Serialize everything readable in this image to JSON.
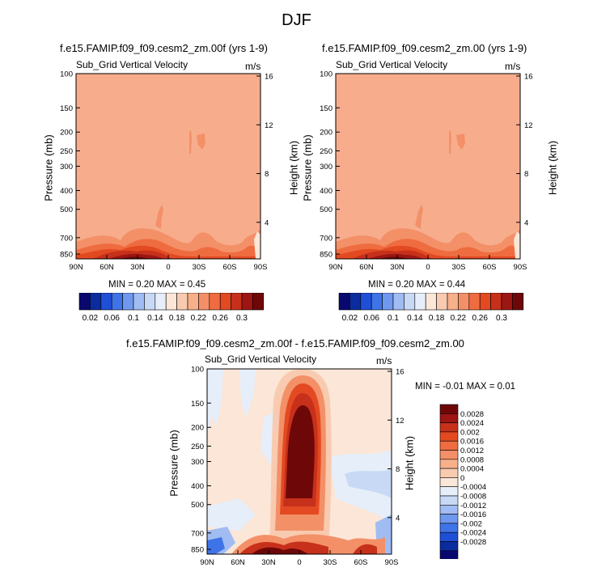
{
  "main_title": "DJF",
  "colors": {
    "hbar": [
      "#08086e",
      "#0a2c9e",
      "#1f4fd6",
      "#3f74e8",
      "#6f98ee",
      "#a0bcf2",
      "#c7d9f5",
      "#e6eefa",
      "#fbe6d7",
      "#f8cbb0",
      "#f6b08a",
      "#f39068",
      "#ef6c40",
      "#e34a22",
      "#c7301a",
      "#9c1614",
      "#6e0808"
    ],
    "vbar": [
      "#6e0808",
      "#9c1614",
      "#c7301a",
      "#e34a22",
      "#ef6c40",
      "#f39068",
      "#f6b08a",
      "#f8cbb0",
      "#fbe6d7",
      "#e6eefa",
      "#c7d9f5",
      "#a0bcf2",
      "#6f98ee",
      "#3f74e8",
      "#1f4fd6",
      "#0a2c9e",
      "#08086e"
    ],
    "bg_field": "#f7ad8c"
  },
  "chart_data": [
    {
      "type": "heatmap",
      "title": "f.e15.FAMIP.f09_f09.cesm2_zm.00f (yrs 1-9)",
      "variable": "Sub_Grid Vertical Velocity",
      "units": "m/s",
      "xlabel": "",
      "ylabel": "Pressure (mb)",
      "ylabel_right": "Height (km)",
      "x_ticks": [
        "90N",
        "60N",
        "30N",
        "0",
        "30S",
        "60S",
        "90S"
      ],
      "y_ticks": [
        "100",
        "150",
        "200",
        "250",
        "300",
        "400",
        "500",
        "700",
        "850"
      ],
      "y_ticks_right": [
        "16",
        "12",
        "8",
        "4"
      ],
      "stats": "MIN =  0.20   MAX =  0.45",
      "min": 0.2,
      "max": 0.45
    },
    {
      "type": "heatmap",
      "title": "f.e15.FAMIP.f09_f09.cesm2_zm.00 (yrs 1-9)",
      "variable": "Sub_Grid Vertical Velocity",
      "units": "m/s",
      "xlabel": "",
      "ylabel": "Pressure (mb)",
      "ylabel_right": "Height (km)",
      "x_ticks": [
        "90N",
        "60N",
        "30N",
        "0",
        "30S",
        "60S",
        "90S"
      ],
      "y_ticks": [
        "100",
        "150",
        "200",
        "250",
        "300",
        "400",
        "500",
        "700",
        "850"
      ],
      "y_ticks_right": [
        "16",
        "12",
        "8",
        "4"
      ],
      "stats": "MIN =  0.20   MAX =  0.44",
      "min": 0.2,
      "max": 0.44
    },
    {
      "type": "heatmap",
      "title": "f.e15.FAMIP.f09_f09.cesm2_zm.00f - f.e15.FAMIP.f09_f09.cesm2_zm.00",
      "variable": "Sub_Grid Vertical Velocity",
      "units": "m/s",
      "xlabel": "",
      "ylabel": "Pressure (mb)",
      "ylabel_right": "Height (km)",
      "x_ticks": [
        "90N",
        "60N",
        "30N",
        "0",
        "30S",
        "60S",
        "90S"
      ],
      "y_ticks": [
        "100",
        "150",
        "200",
        "250",
        "300",
        "400",
        "500",
        "700",
        "850"
      ],
      "y_ticks_right": [
        "16",
        "12",
        "8",
        "4"
      ],
      "stats": "MIN =  -0.01   MAX =  0.01",
      "min": -0.01,
      "max": 0.01
    }
  ],
  "colorbar_h": {
    "labels": [
      "0.02",
      "0.06",
      "0.1",
      "0.14",
      "0.18",
      "0.22",
      "0.26",
      "0.3"
    ]
  },
  "colorbar_v": {
    "labels": [
      "0.0028",
      "0.0024",
      "0.002",
      "0.0016",
      "0.0012",
      "0.0008",
      "0.0004",
      "0",
      "-0.0004",
      "-0.0008",
      "-0.0012",
      "-0.0016",
      "-0.002",
      "-0.0024",
      "-0.0028"
    ]
  }
}
